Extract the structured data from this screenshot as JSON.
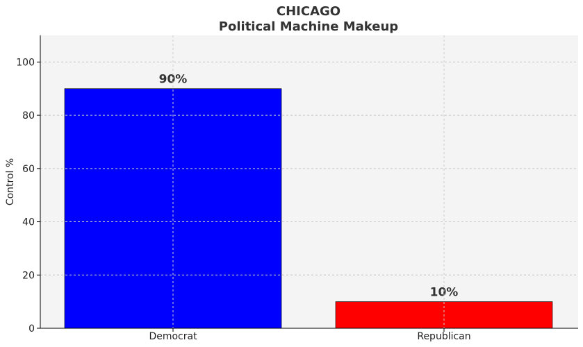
{
  "chart_data": {
    "type": "bar",
    "title": "CHICAGO",
    "subtitle": "Political Machine Makeup",
    "xlabel": "",
    "ylabel": "Control %",
    "ylim": [
      0,
      110
    ],
    "yticks": [
      0,
      20,
      40,
      60,
      80,
      100
    ],
    "grid": true,
    "categories": [
      "Democrat",
      "Republican"
    ],
    "values": [
      90,
      10
    ],
    "value_labels": [
      "90%",
      "10%"
    ],
    "colors": [
      "#0000ff",
      "#ff0000"
    ],
    "background": "#f4f4f4"
  }
}
